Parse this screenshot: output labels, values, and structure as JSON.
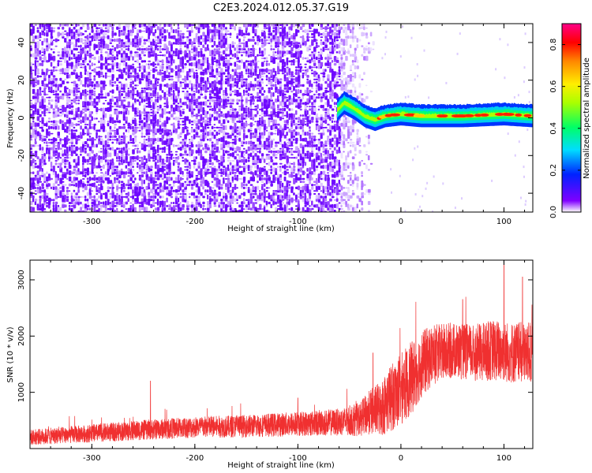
{
  "figure_title": "C2E3.2024.012.05.37.G19",
  "chart_data": [
    {
      "type": "heatmap",
      "xlabel": "Height of straight line (km)",
      "ylabel": "Frequency (Hz)",
      "xlim": [
        -360,
        128
      ],
      "ylim": [
        -50,
        50
      ],
      "x_ticks": [
        -300,
        -200,
        -100,
        0,
        100
      ],
      "y_ticks": [
        -40,
        -20,
        0,
        20,
        40
      ],
      "colorbar": {
        "label": "Normalized spectral amplitude",
        "range": [
          0.0,
          0.9
        ],
        "ticks": [
          0.0,
          0.2,
          0.4,
          0.6,
          0.8
        ],
        "colormap": [
          "#ffffff",
          "#5500ff",
          "#0033ff",
          "#00ddff",
          "#00ff66",
          "#aaff00",
          "#ffee00",
          "#ff8800",
          "#ff0000",
          "#ff0088"
        ]
      },
      "features": {
        "noise_region_x": [
          -360,
          -60
        ],
        "noise_fade_x": [
          -60,
          -25
        ],
        "signal_line": [
          {
            "x": -62,
            "y": 4
          },
          {
            "x": -55,
            "y": 8
          },
          {
            "x": -45,
            "y": 5
          },
          {
            "x": -35,
            "y": 1
          },
          {
            "x": -25,
            "y": -1
          },
          {
            "x": -15,
            "y": 1
          },
          {
            "x": 0,
            "y": 2
          },
          {
            "x": 20,
            "y": 1
          },
          {
            "x": 60,
            "y": 1
          },
          {
            "x": 100,
            "y": 2
          },
          {
            "x": 128,
            "y": 1
          }
        ],
        "signal_halfwidth_hz": 2.5
      }
    },
    {
      "type": "line",
      "xlabel": "Height of straight line (km)",
      "ylabel": "SNR (10 * v/v)",
      "xlim": [
        -360,
        128
      ],
      "ylim": [
        0,
        3350
      ],
      "x_ticks": [
        -300,
        -200,
        -100,
        0,
        100
      ],
      "y_ticks": [
        1000,
        2000,
        3000
      ],
      "color": "#f03030",
      "envelope": {
        "x": [
          -360,
          -300,
          -250,
          -200,
          -150,
          -100,
          -60,
          -40,
          -30,
          -20,
          -10,
          0,
          10,
          20,
          30,
          50,
          70,
          90,
          110,
          128
        ],
        "mean": [
          200,
          270,
          330,
          380,
          400,
          440,
          470,
          520,
          650,
          700,
          900,
          1050,
          1250,
          1500,
          1650,
          1750,
          1700,
          1750,
          1700,
          1700
        ],
        "spread": [
          140,
          160,
          180,
          190,
          200,
          220,
          240,
          300,
          400,
          500,
          600,
          650,
          650,
          600,
          550,
          500,
          500,
          550,
          550,
          550
        ]
      },
      "peaks": [
        {
          "x": -243,
          "y": 1200
        },
        {
          "x": -100,
          "y": 900
        },
        {
          "x": -27,
          "y": 1700
        },
        {
          "x": 100,
          "y": 3350
        },
        {
          "x": 118,
          "y": 3050
        },
        {
          "x": 60,
          "y": 2650
        }
      ]
    }
  ]
}
